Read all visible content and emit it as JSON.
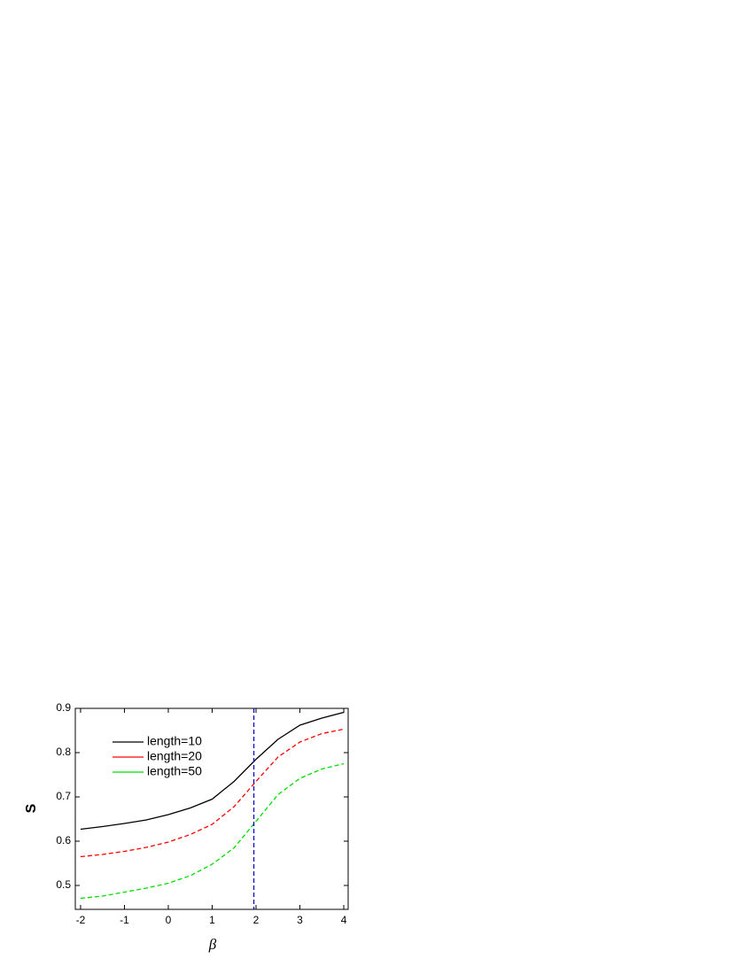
{
  "chart_data": {
    "type": "line",
    "x": [
      -2,
      -1.5,
      -1,
      -0.5,
      0,
      0.5,
      1,
      1.5,
      2,
      2.5,
      3,
      3.5,
      4
    ],
    "series": [
      {
        "name": "length=10",
        "color": "#000000",
        "dash": false,
        "values": [
          0.627,
          0.633,
          0.64,
          0.648,
          0.66,
          0.675,
          0.695,
          0.735,
          0.785,
          0.83,
          0.862,
          0.878,
          0.891
        ]
      },
      {
        "name": "length=20",
        "color": "#ff0000",
        "dash": true,
        "values": [
          0.565,
          0.57,
          0.577,
          0.586,
          0.598,
          0.615,
          0.638,
          0.678,
          0.735,
          0.79,
          0.824,
          0.843,
          0.853
        ]
      },
      {
        "name": "length=50",
        "color": "#00dd00",
        "dash": true,
        "values": [
          0.471,
          0.476,
          0.485,
          0.494,
          0.505,
          0.522,
          0.548,
          0.585,
          0.645,
          0.705,
          0.742,
          0.763,
          0.775
        ]
      }
    ],
    "vline": {
      "x": 1.95,
      "color": "#0000cc"
    },
    "xlabel": "β",
    "ylabel": "S",
    "xlim": [
      -2.12,
      4.1
    ],
    "ylim": [
      0.446,
      0.9
    ],
    "xticks": [
      -2,
      -1,
      0,
      1,
      2,
      3,
      4
    ],
    "yticks": [
      0.5,
      0.6,
      0.7,
      0.8,
      0.9
    ]
  }
}
